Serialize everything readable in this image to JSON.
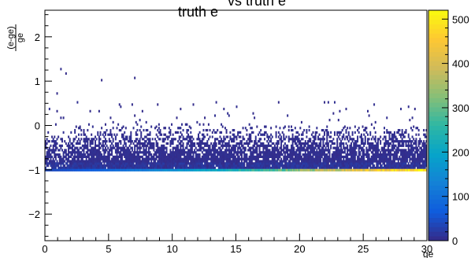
{
  "chart_data": {
    "type": "heatmap",
    "title_main": "truth e",
    "title_trail": "vs truth e",
    "xlabel": "ge",
    "ylabel_numerator": "(e-ge)",
    "ylabel_denominator": "ge",
    "xlim": [
      0,
      30
    ],
    "ylim": [
      -2.6,
      2.6
    ],
    "x_ticks": [
      0,
      5,
      10,
      15,
      20,
      25,
      30
    ],
    "y_ticks": [
      -2,
      -1,
      0,
      1,
      2
    ],
    "x_tick_labels": [
      "0",
      "5",
      "10",
      "15",
      "20",
      "25",
      "30"
    ],
    "y_tick_labels": [
      "−2",
      "−1",
      "0",
      "1",
      "2"
    ],
    "z_range": [
      0,
      520
    ],
    "z_ticks": [
      0,
      100,
      200,
      300,
      400,
      500
    ],
    "z_tick_labels": [
      "0",
      "100",
      "200",
      "300",
      "400",
      "500"
    ],
    "palette": [
      "#352a87",
      "#0f5cdd",
      "#1481d6",
      "#06a4ca",
      "#2eb7a4",
      "#87bf77",
      "#d1bb59",
      "#fec832",
      "#f9fb0e"
    ],
    "grid": false,
    "bins": {
      "x_bins": 300,
      "y_bins": 104
    },
    "profile": {
      "band_floor_y": -0.98,
      "dense_region_top_y": -0.05,
      "sparse_outlier_max_y": 1.35,
      "floor_row_counts_ramp": [
        40,
        520
      ]
    },
    "bin_width_x": 0.1,
    "bin_width_y": 0.05
  }
}
